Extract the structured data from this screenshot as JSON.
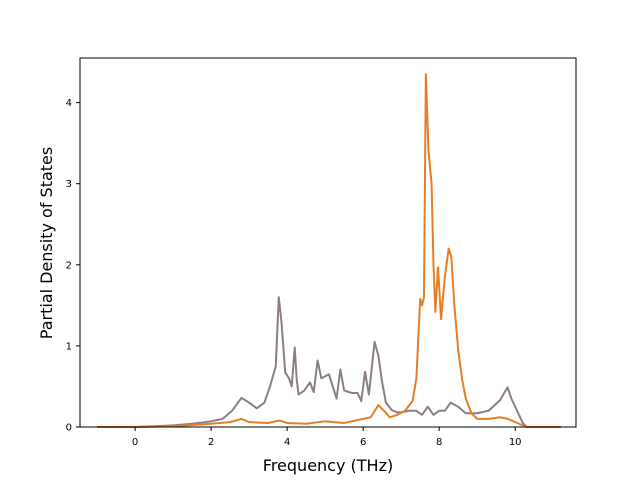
{
  "chart_data": {
    "type": "line",
    "xlabel": "Frequency (THz)",
    "ylabel": "Partial Density of States",
    "xlim": [
      -1.45,
      11.6
    ],
    "ylim": [
      0,
      4.55
    ],
    "x_ticks": [
      0,
      2,
      4,
      6,
      8,
      10
    ],
    "y_ticks": [
      0,
      1,
      2,
      3,
      4
    ],
    "grid": false,
    "legend": "none",
    "series": [
      {
        "color": "#8c7f84",
        "points": [
          [
            -1.0,
            0.0
          ],
          [
            0.0,
            0.0
          ],
          [
            0.5,
            0.01
          ],
          [
            1.0,
            0.02
          ],
          [
            1.5,
            0.04
          ],
          [
            2.0,
            0.07
          ],
          [
            2.3,
            0.1
          ],
          [
            2.55,
            0.2
          ],
          [
            2.8,
            0.36
          ],
          [
            3.0,
            0.3
          ],
          [
            3.2,
            0.23
          ],
          [
            3.4,
            0.3
          ],
          [
            3.55,
            0.5
          ],
          [
            3.7,
            0.75
          ],
          [
            3.78,
            1.6
          ],
          [
            3.85,
            1.3
          ],
          [
            3.95,
            0.67
          ],
          [
            4.05,
            0.6
          ],
          [
            4.12,
            0.5
          ],
          [
            4.2,
            0.98
          ],
          [
            4.25,
            0.6
          ],
          [
            4.3,
            0.4
          ],
          [
            4.45,
            0.45
          ],
          [
            4.6,
            0.55
          ],
          [
            4.7,
            0.43
          ],
          [
            4.8,
            0.82
          ],
          [
            4.9,
            0.6
          ],
          [
            5.1,
            0.65
          ],
          [
            5.2,
            0.5
          ],
          [
            5.3,
            0.35
          ],
          [
            5.4,
            0.71
          ],
          [
            5.5,
            0.45
          ],
          [
            5.7,
            0.42
          ],
          [
            5.85,
            0.42
          ],
          [
            5.95,
            0.32
          ],
          [
            6.05,
            0.68
          ],
          [
            6.15,
            0.4
          ],
          [
            6.3,
            1.05
          ],
          [
            6.4,
            0.88
          ],
          [
            6.5,
            0.55
          ],
          [
            6.6,
            0.3
          ],
          [
            6.75,
            0.21
          ],
          [
            6.9,
            0.18
          ],
          [
            7.0,
            0.18
          ],
          [
            7.2,
            0.2
          ],
          [
            7.4,
            0.2
          ],
          [
            7.55,
            0.15
          ],
          [
            7.7,
            0.25
          ],
          [
            7.85,
            0.15
          ],
          [
            8.0,
            0.2
          ],
          [
            8.15,
            0.2
          ],
          [
            8.3,
            0.3
          ],
          [
            8.5,
            0.25
          ],
          [
            8.7,
            0.17
          ],
          [
            9.0,
            0.17
          ],
          [
            9.3,
            0.2
          ],
          [
            9.6,
            0.33
          ],
          [
            9.8,
            0.49
          ],
          [
            9.9,
            0.35
          ],
          [
            10.05,
            0.2
          ],
          [
            10.2,
            0.05
          ],
          [
            10.3,
            0.0
          ],
          [
            11.2,
            0.0
          ]
        ]
      },
      {
        "color": "#e57f27",
        "points": [
          [
            -1.0,
            0.0
          ],
          [
            0.0,
            0.0
          ],
          [
            1.0,
            0.01
          ],
          [
            2.0,
            0.04
          ],
          [
            2.5,
            0.06
          ],
          [
            2.8,
            0.1
          ],
          [
            3.0,
            0.06
          ],
          [
            3.5,
            0.05
          ],
          [
            3.8,
            0.08
          ],
          [
            4.0,
            0.05
          ],
          [
            4.5,
            0.04
          ],
          [
            5.0,
            0.07
          ],
          [
            5.5,
            0.05
          ],
          [
            6.0,
            0.1
          ],
          [
            6.2,
            0.12
          ],
          [
            6.4,
            0.27
          ],
          [
            6.55,
            0.2
          ],
          [
            6.7,
            0.12
          ],
          [
            6.9,
            0.15
          ],
          [
            7.1,
            0.2
          ],
          [
            7.3,
            0.32
          ],
          [
            7.4,
            0.6
          ],
          [
            7.5,
            1.58
          ],
          [
            7.55,
            1.5
          ],
          [
            7.6,
            1.6
          ],
          [
            7.65,
            4.35
          ],
          [
            7.72,
            3.4
          ],
          [
            7.8,
            3.0
          ],
          [
            7.85,
            2.0
          ],
          [
            7.9,
            1.42
          ],
          [
            7.97,
            1.97
          ],
          [
            8.05,
            1.33
          ],
          [
            8.15,
            1.85
          ],
          [
            8.25,
            2.2
          ],
          [
            8.32,
            2.1
          ],
          [
            8.4,
            1.5
          ],
          [
            8.5,
            0.95
          ],
          [
            8.6,
            0.6
          ],
          [
            8.7,
            0.35
          ],
          [
            8.85,
            0.17
          ],
          [
            9.0,
            0.1
          ],
          [
            9.3,
            0.1
          ],
          [
            9.6,
            0.12
          ],
          [
            9.8,
            0.1
          ],
          [
            10.0,
            0.06
          ],
          [
            10.2,
            0.02
          ],
          [
            10.3,
            0.0
          ],
          [
            11.2,
            0.0
          ]
        ]
      }
    ]
  }
}
